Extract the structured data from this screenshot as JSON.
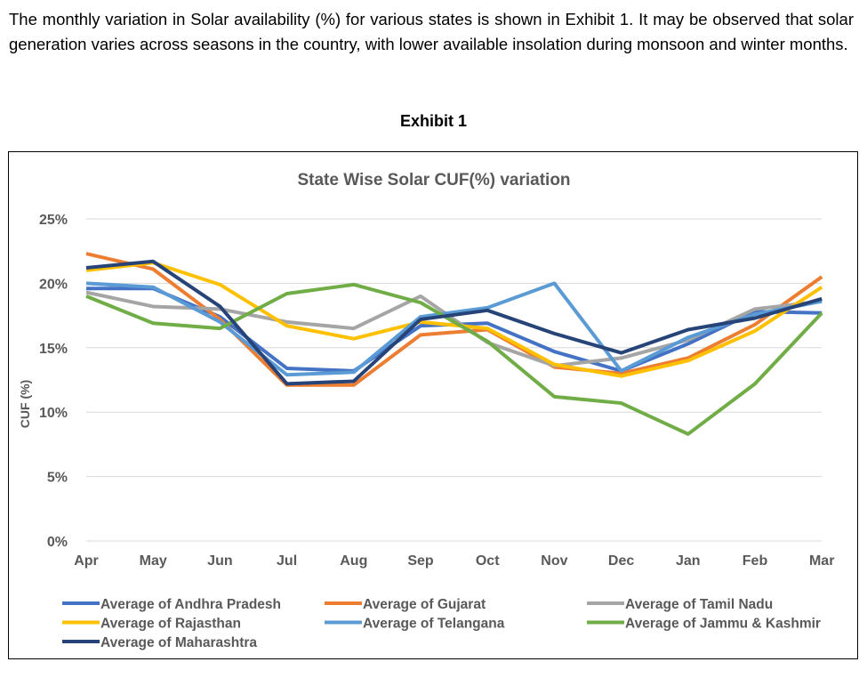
{
  "intro_text": "The monthly variation in Solar availability (%) for various states is shown in Exhibit 1. It may be observed that solar generation varies across seasons in the country, with lower available insolation during monsoon and winter months.",
  "exhibit_label": "Exhibit 1",
  "chart_data": {
    "type": "line",
    "title": "State Wise Solar CUF(%) variation",
    "xlabel": "",
    "ylabel": "CUF (%)",
    "ylim": [
      0,
      25
    ],
    "yticks": [
      "0%",
      "5%",
      "10%",
      "15%",
      "20%",
      "25%"
    ],
    "grid": true,
    "legend_position": "bottom",
    "categories": [
      "Apr",
      "May",
      "Jun",
      "Jul",
      "Aug",
      "Sep",
      "Oct",
      "Nov",
      "Dec",
      "Jan",
      "Feb",
      "Mar"
    ],
    "series": [
      {
        "name": "Average of Andhra Pradesh",
        "color": "#4472C4",
        "values": [
          19.6,
          19.6,
          17.4,
          13.4,
          13.2,
          16.7,
          16.9,
          14.7,
          13.2,
          15.3,
          17.8,
          17.7
        ]
      },
      {
        "name": "Average of Gujarat",
        "color": "#ED7D31",
        "values": [
          22.3,
          21.1,
          17.2,
          12.1,
          12.1,
          16.0,
          16.4,
          13.5,
          13.0,
          14.2,
          16.8,
          20.5
        ]
      },
      {
        "name": "Average of Tamil Nadu",
        "color": "#A5A5A5",
        "values": [
          19.3,
          18.2,
          18.0,
          17.0,
          16.5,
          19.0,
          15.4,
          13.6,
          14.2,
          15.6,
          18.0,
          18.6
        ]
      },
      {
        "name": "Average of Rajasthan",
        "color": "#FFC000",
        "values": [
          21.0,
          21.6,
          19.9,
          16.7,
          15.7,
          17.0,
          16.5,
          13.7,
          12.8,
          14.0,
          16.3,
          19.7
        ]
      },
      {
        "name": "Average of Telangana",
        "color": "#5B9BD5",
        "values": [
          20.0,
          19.7,
          17.0,
          12.9,
          13.1,
          17.4,
          18.1,
          20.0,
          13.2,
          15.8,
          17.6,
          18.6
        ]
      },
      {
        "name": "Average of Jammu & Kashmir",
        "color": "#70AD47",
        "values": [
          19.0,
          16.9,
          16.5,
          19.2,
          19.9,
          18.5,
          15.5,
          11.2,
          10.7,
          8.3,
          12.2,
          17.7
        ]
      },
      {
        "name": "Average of Maharashtra",
        "color": "#264478",
        "values": [
          21.2,
          21.7,
          18.2,
          12.2,
          12.4,
          17.2,
          17.9,
          16.1,
          14.6,
          16.4,
          17.3,
          18.8
        ]
      }
    ]
  }
}
